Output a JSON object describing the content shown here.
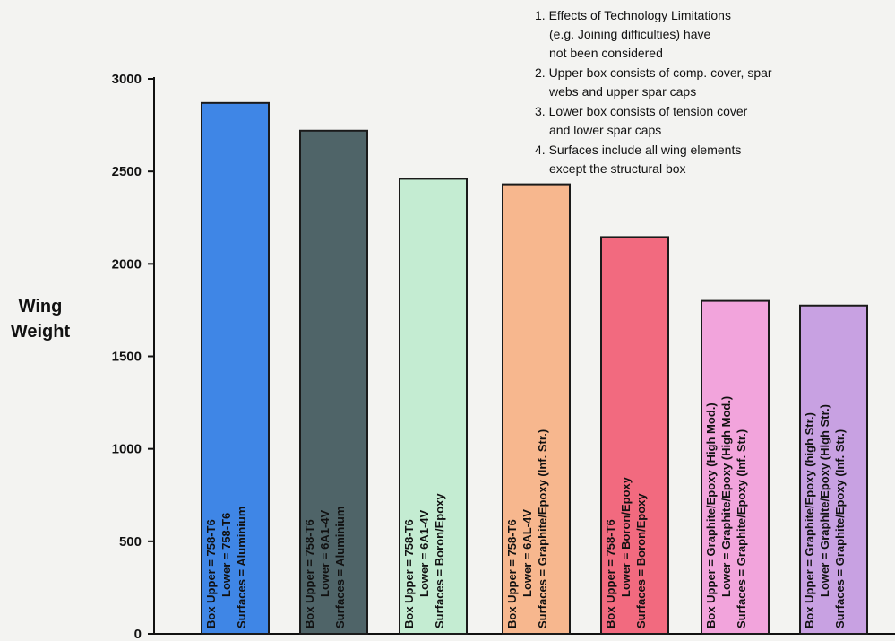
{
  "chart_data": {
    "type": "bar",
    "ylabel": [
      "Wing",
      "Weight"
    ],
    "ylim": [
      0,
      3000
    ],
    "y_ticks": [
      0,
      500,
      1000,
      1500,
      2000,
      2500,
      3000
    ],
    "grid": false,
    "legend": "none",
    "values": [
      2870,
      2720,
      2460,
      2430,
      2145,
      1800,
      1775
    ],
    "bars": [
      {
        "value": 2870,
        "color": "#3f86e6",
        "lines": [
          "Box Upper = 758-T6",
          "Lower = 758-T6",
          "Surfaces = Aluminium"
        ]
      },
      {
        "value": 2720,
        "color": "#4f6468",
        "lines": [
          "Box Upper = 758-T6",
          "Lower = 6A1-4V",
          "Surfaces = Aluminium"
        ]
      },
      {
        "value": 2460,
        "color": "#c4ecd2",
        "lines": [
          "Box Upper = 758-T6",
          "Lower = 6A1-4V",
          "Surfaces = Boron/Epoxy"
        ]
      },
      {
        "value": 2430,
        "color": "#f7b78e",
        "lines": [
          "Box Upper = 758-T6",
          "Lower = 6AL-4V",
          "Surfaces = Graphite/Epoxy (Inf. Str.)"
        ]
      },
      {
        "value": 2145,
        "color": "#f26a7f",
        "lines": [
          "Box Upper = 758-T6",
          "Lower = Boron/Epoxy",
          "Surfaces = Boron/Epoxy"
        ]
      },
      {
        "value": 1800,
        "color": "#f2a4dc",
        "lines": [
          "Box Upper = Graphite/Epoxy (High Mod.)",
          "Lower = Graphite/Epoxy (High Mod.)",
          "Surfaces = Graphite/Epoxy (Inf. Str.)"
        ]
      },
      {
        "value": 1775,
        "color": "#c8a1e2",
        "lines": [
          "Box Upper = Graphite/Epoxy (high Str.)",
          "Lower = Graphite/Epoxy (High Str.)",
          "Surfaces = Graphite/Epoxy (Inf. Str.)"
        ]
      }
    ],
    "notes": [
      [
        "1. Effects of Technology Limitations",
        "(e.g. Joining difficulties) have",
        "not been considered"
      ],
      [
        "2. Upper box consists of comp. cover, spar",
        "webs and upper spar caps"
      ],
      [
        "3. Lower box consists of tension cover",
        "and lower spar caps"
      ],
      [
        "4. Surfaces include all wing elements",
        "except the structural box"
      ]
    ]
  }
}
